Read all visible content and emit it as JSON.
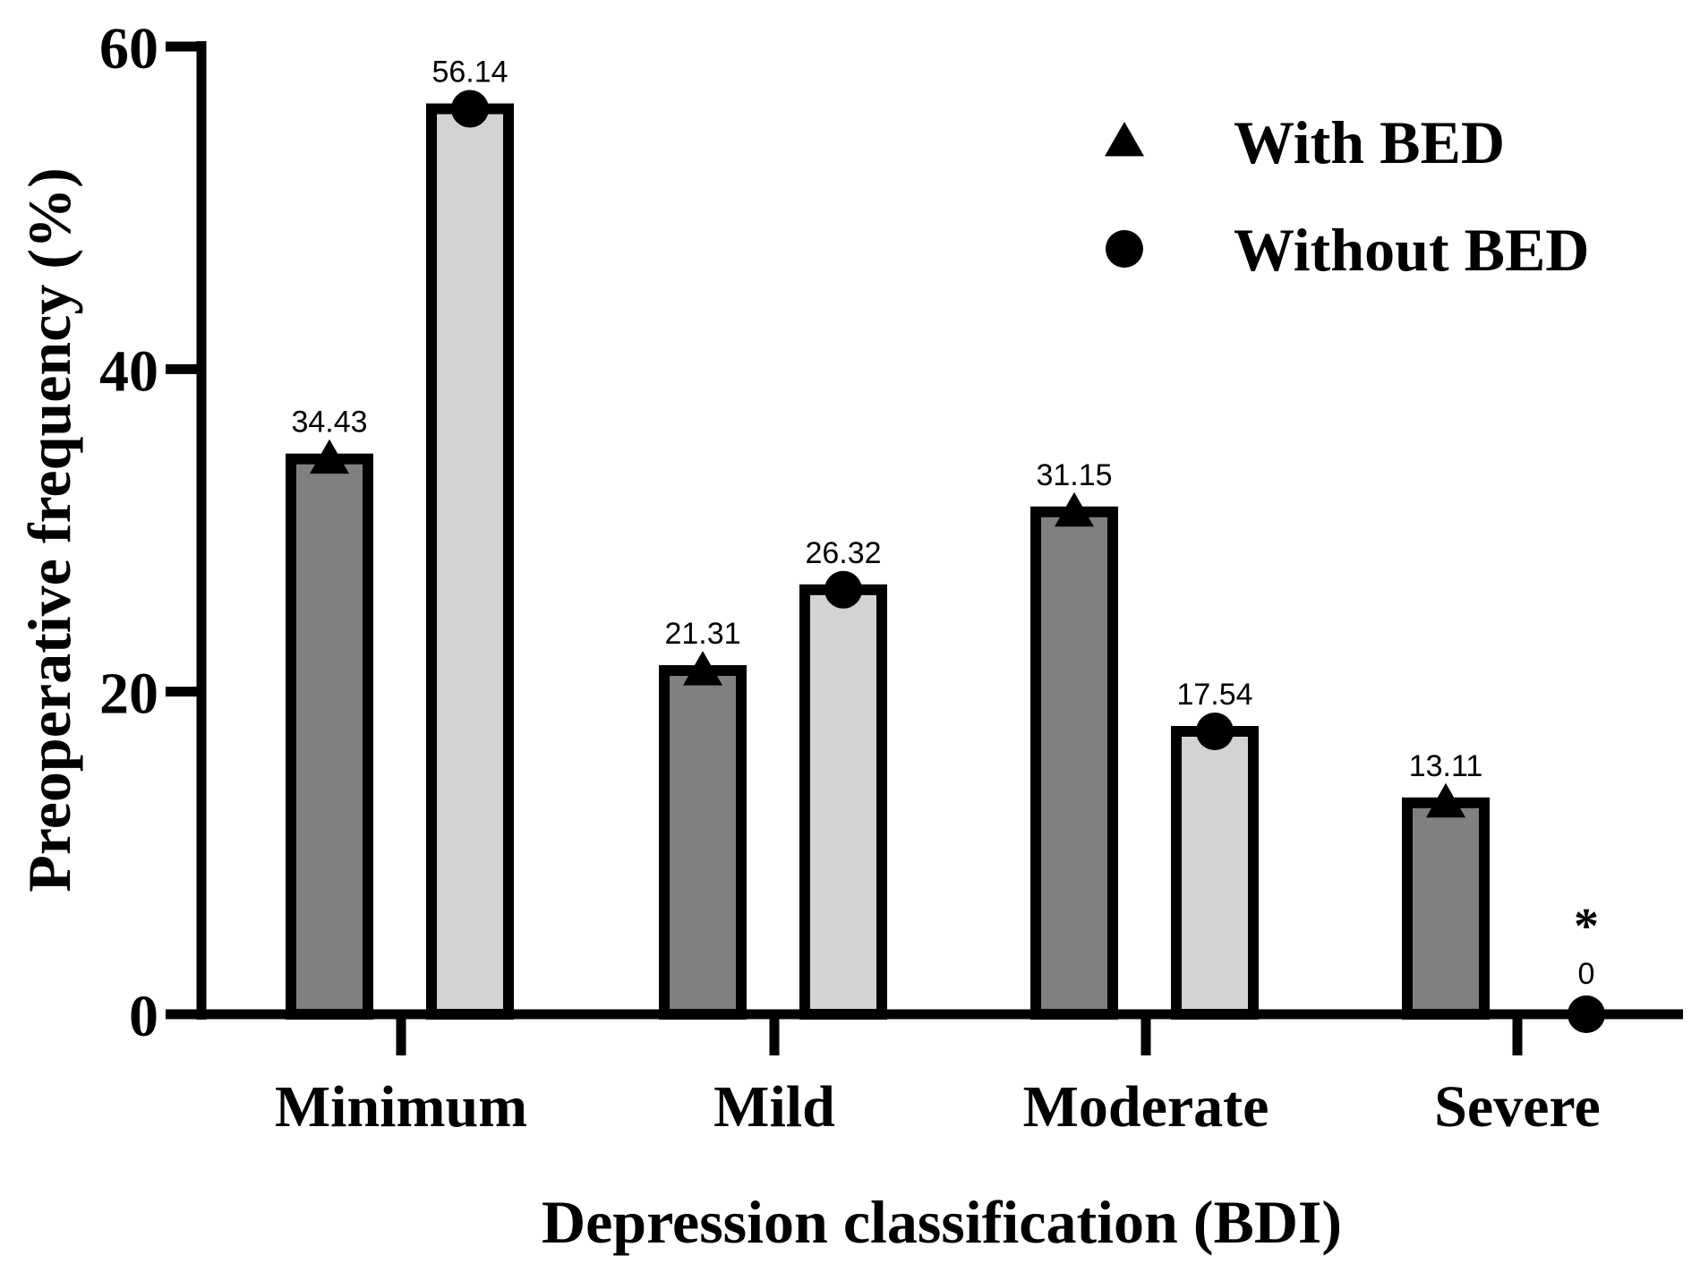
{
  "chart_data": {
    "type": "bar",
    "title": "",
    "xlabel": "Depression classification (BDI)",
    "ylabel": "Preoperative frequency (%)",
    "ylim": [
      0,
      60
    ],
    "yticks": [
      0,
      20,
      40,
      60
    ],
    "categories": [
      "Minimum",
      "Mild",
      "Moderate",
      "Severe"
    ],
    "series": [
      {
        "name": "With BED",
        "marker": "triangle",
        "color": "#808080",
        "values": [
          34.43,
          21.31,
          31.15,
          13.11
        ],
        "labels": [
          "34.43",
          "21.31",
          "31.15",
          "13.11"
        ]
      },
      {
        "name": "Without BED",
        "marker": "circle",
        "color": "#d3d3d3",
        "values": [
          56.14,
          26.32,
          17.54,
          0
        ],
        "labels": [
          "56.14",
          "26.32",
          "17.54",
          "0"
        ]
      }
    ],
    "annotations": [
      {
        "text": "*",
        "category": "Severe",
        "series": "Without BED"
      }
    ],
    "legend": {
      "position": "top-right",
      "items": [
        "With BED",
        "Without BED"
      ]
    },
    "grid": false,
    "colors": {
      "axis": "#000000",
      "with_bed": "#808080",
      "without_bed": "#d3d3d3",
      "outline": "#000000"
    }
  }
}
